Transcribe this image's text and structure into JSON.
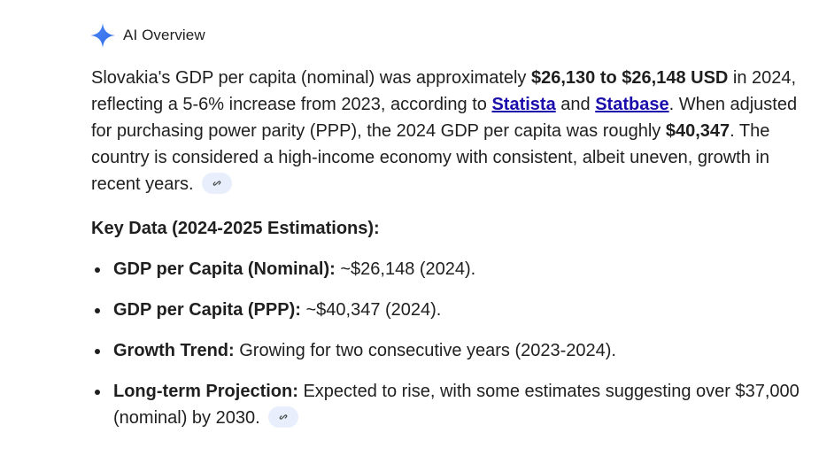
{
  "header": {
    "title": "AI Overview",
    "icon": "sparkle-icon",
    "accent_color": "#4285f4"
  },
  "summary": {
    "part1": "Slovakia's GDP per capita (nominal) was approximately ",
    "bold1": "$26,130 to $26,148 USD",
    "part2": " in 2024, reflecting a 5-6% increase from 2023, according to ",
    "link1": "Statista",
    "part3": " and ",
    "link2": "Statbase",
    "part4": ". When adjusted for purchasing power parity (PPP), the 2024 GDP per capita was roughly ",
    "bold2": "$40,347",
    "part5": ". The country is considered a high-income economy with consistent, albeit uneven, growth in recent years.",
    "link_color": "#1a0dab"
  },
  "key_data": {
    "heading": "Key Data (2024-2025 Estimations):",
    "items": [
      {
        "label": "GDP per Capita (Nominal):",
        "text": " ~$26,148 (2024)."
      },
      {
        "label": "GDP per Capita (PPP):",
        "text": " ~$40,347 (2024)."
      },
      {
        "label": "Growth Trend:",
        "text": " Growing for two consecutive years (2023-2024)."
      },
      {
        "label": "Long-term Projection:",
        "text": " Expected to rise, with some estimates suggesting over $37,000 (nominal) by 2030."
      }
    ]
  },
  "citation_chip": {
    "icon": "link-icon",
    "background": "#e8eefb"
  }
}
